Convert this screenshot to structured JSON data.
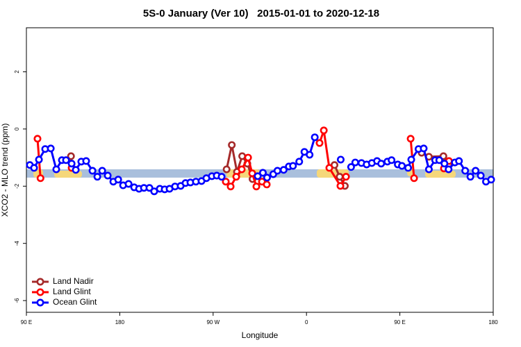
{
  "chart_data": {
    "type": "line",
    "title": "5S-0 January (Ver 10)   2015-01-01 to 2020-12-18",
    "xlabel": "Longitude",
    "ylabel": "XCO2 - MLO trend (ppm)",
    "xlim": [
      90,
      540
    ],
    "ylim": [
      -6.41,
      3.54
    ],
    "xticks": [
      {
        "value": 90,
        "label": "90 E"
      },
      180,
      {
        "value": 270,
        "label": "90 W"
      },
      {
        "value": 360,
        "label": "0"
      },
      {
        "value": 450,
        "label": "90 E"
      },
      {
        "value": 540,
        "label": "180"
      }
    ],
    "yticks": [
      2,
      0,
      -2,
      -4,
      -6
    ],
    "reference_band": [
      -1.7,
      -1.41
    ],
    "legend": "bottom-left",
    "series": [
      {
        "name": "Land Nadir",
        "color": "#a52a2a",
        "x": [
          133,
          null,
          283,
          288,
          293,
          298,
          303,
          308,
          null,
          387,
          392,
          397,
          null,
          471,
          478,
          492,
          497
        ],
        "values": [
          -0.95,
          null,
          -1.41,
          -0.56,
          -1.5,
          -0.95,
          -1.21,
          -1.75,
          null,
          -1.26,
          -1.67,
          -1.99,
          null,
          -0.83,
          -0.97,
          -0.95,
          -1.24
        ]
      },
      {
        "name": "Land Glint",
        "color": "#ff0000",
        "x": [
          100.7,
          103.6,
          null,
          133.6,
          null,
          282.2,
          286.9,
          292.3,
          297.6,
          303.7,
          307.7,
          311.7,
          317.1,
          321.7,
          null,
          372.6,
          376.7,
          382,
          392.7,
          398.1,
          null,
          460.4,
          463.7,
          null,
          492.5,
          497.3
        ],
        "values": [
          -0.34,
          -1.72,
          null,
          -1.36,
          null,
          -1.84,
          -2.01,
          -1.67,
          -1.41,
          -1,
          -1.55,
          -2.01,
          -1.84,
          -1.94,
          null,
          -0.49,
          -0.05,
          -1.36,
          -1.99,
          -1.67,
          null,
          -0.34,
          -1.72,
          null,
          -1.38,
          -1.12
        ]
      },
      {
        "name": "Ocean Glint",
        "color": "#0000ff",
        "x": [
          93.3,
          97.4,
          102.1,
          108.1,
          113.5,
          118.8,
          124.2,
          128.2,
          133.6,
          137.6,
          142.9,
          147.6,
          153.7,
          158.4,
          163.1,
          168.4,
          173.8,
          178.5,
          183.2,
          188.5,
          193.9,
          198.6,
          203.3,
          208.6,
          213.2,
          218.6,
          223.3,
          228,
          233.3,
          238.7,
          243.4,
          248.1,
          253.4,
          258.8,
          263.5,
          268.8,
          273.5,
          278.2,
          null,
          313,
          318,
          322,
          328,
          332,
          338,
          343,
          347,
          353,
          358,
          363,
          368,
          null,
          393,
          null,
          403,
          407,
          413,
          418,
          423,
          428,
          432,
          438,
          442,
          448,
          452,
          458,
          461,
          468,
          473,
          478,
          484,
          488,
          493,
          497,
          503,
          507,
          513,
          518,
          523,
          528,
          533,
          538
        ],
        "values": [
          -1.26,
          -1.36,
          -1.07,
          -0.7,
          -0.68,
          -1.41,
          -1.09,
          -1.09,
          -1.21,
          -1.43,
          -1.14,
          -1.12,
          -1.46,
          -1.67,
          -1.46,
          -1.63,
          -1.84,
          -1.77,
          -1.97,
          -1.92,
          -2.04,
          -2.09,
          -2.06,
          -2.06,
          -2.18,
          -2.09,
          -2.11,
          -2.09,
          -2.01,
          -1.99,
          -1.89,
          -1.87,
          -1.84,
          -1.82,
          -1.72,
          -1.65,
          -1.63,
          -1.67,
          null,
          -1.65,
          -1.53,
          -1.7,
          -1.58,
          -1.46,
          -1.43,
          -1.31,
          -1.29,
          -1.14,
          -0.8,
          -0.9,
          -0.29,
          null,
          -1.07,
          null,
          -1.33,
          -1.17,
          -1.19,
          -1.24,
          -1.19,
          -1.12,
          -1.21,
          -1.14,
          -1.09,
          -1.24,
          -1.29,
          -1.36,
          -1.07,
          -0.7,
          -0.68,
          -1.41,
          -1.09,
          -1.09,
          -1.21,
          -1.41,
          -1.17,
          -1.12,
          -1.46,
          -1.67,
          -1.46,
          -1.63,
          -1.84,
          -1.77
        ]
      }
    ]
  }
}
